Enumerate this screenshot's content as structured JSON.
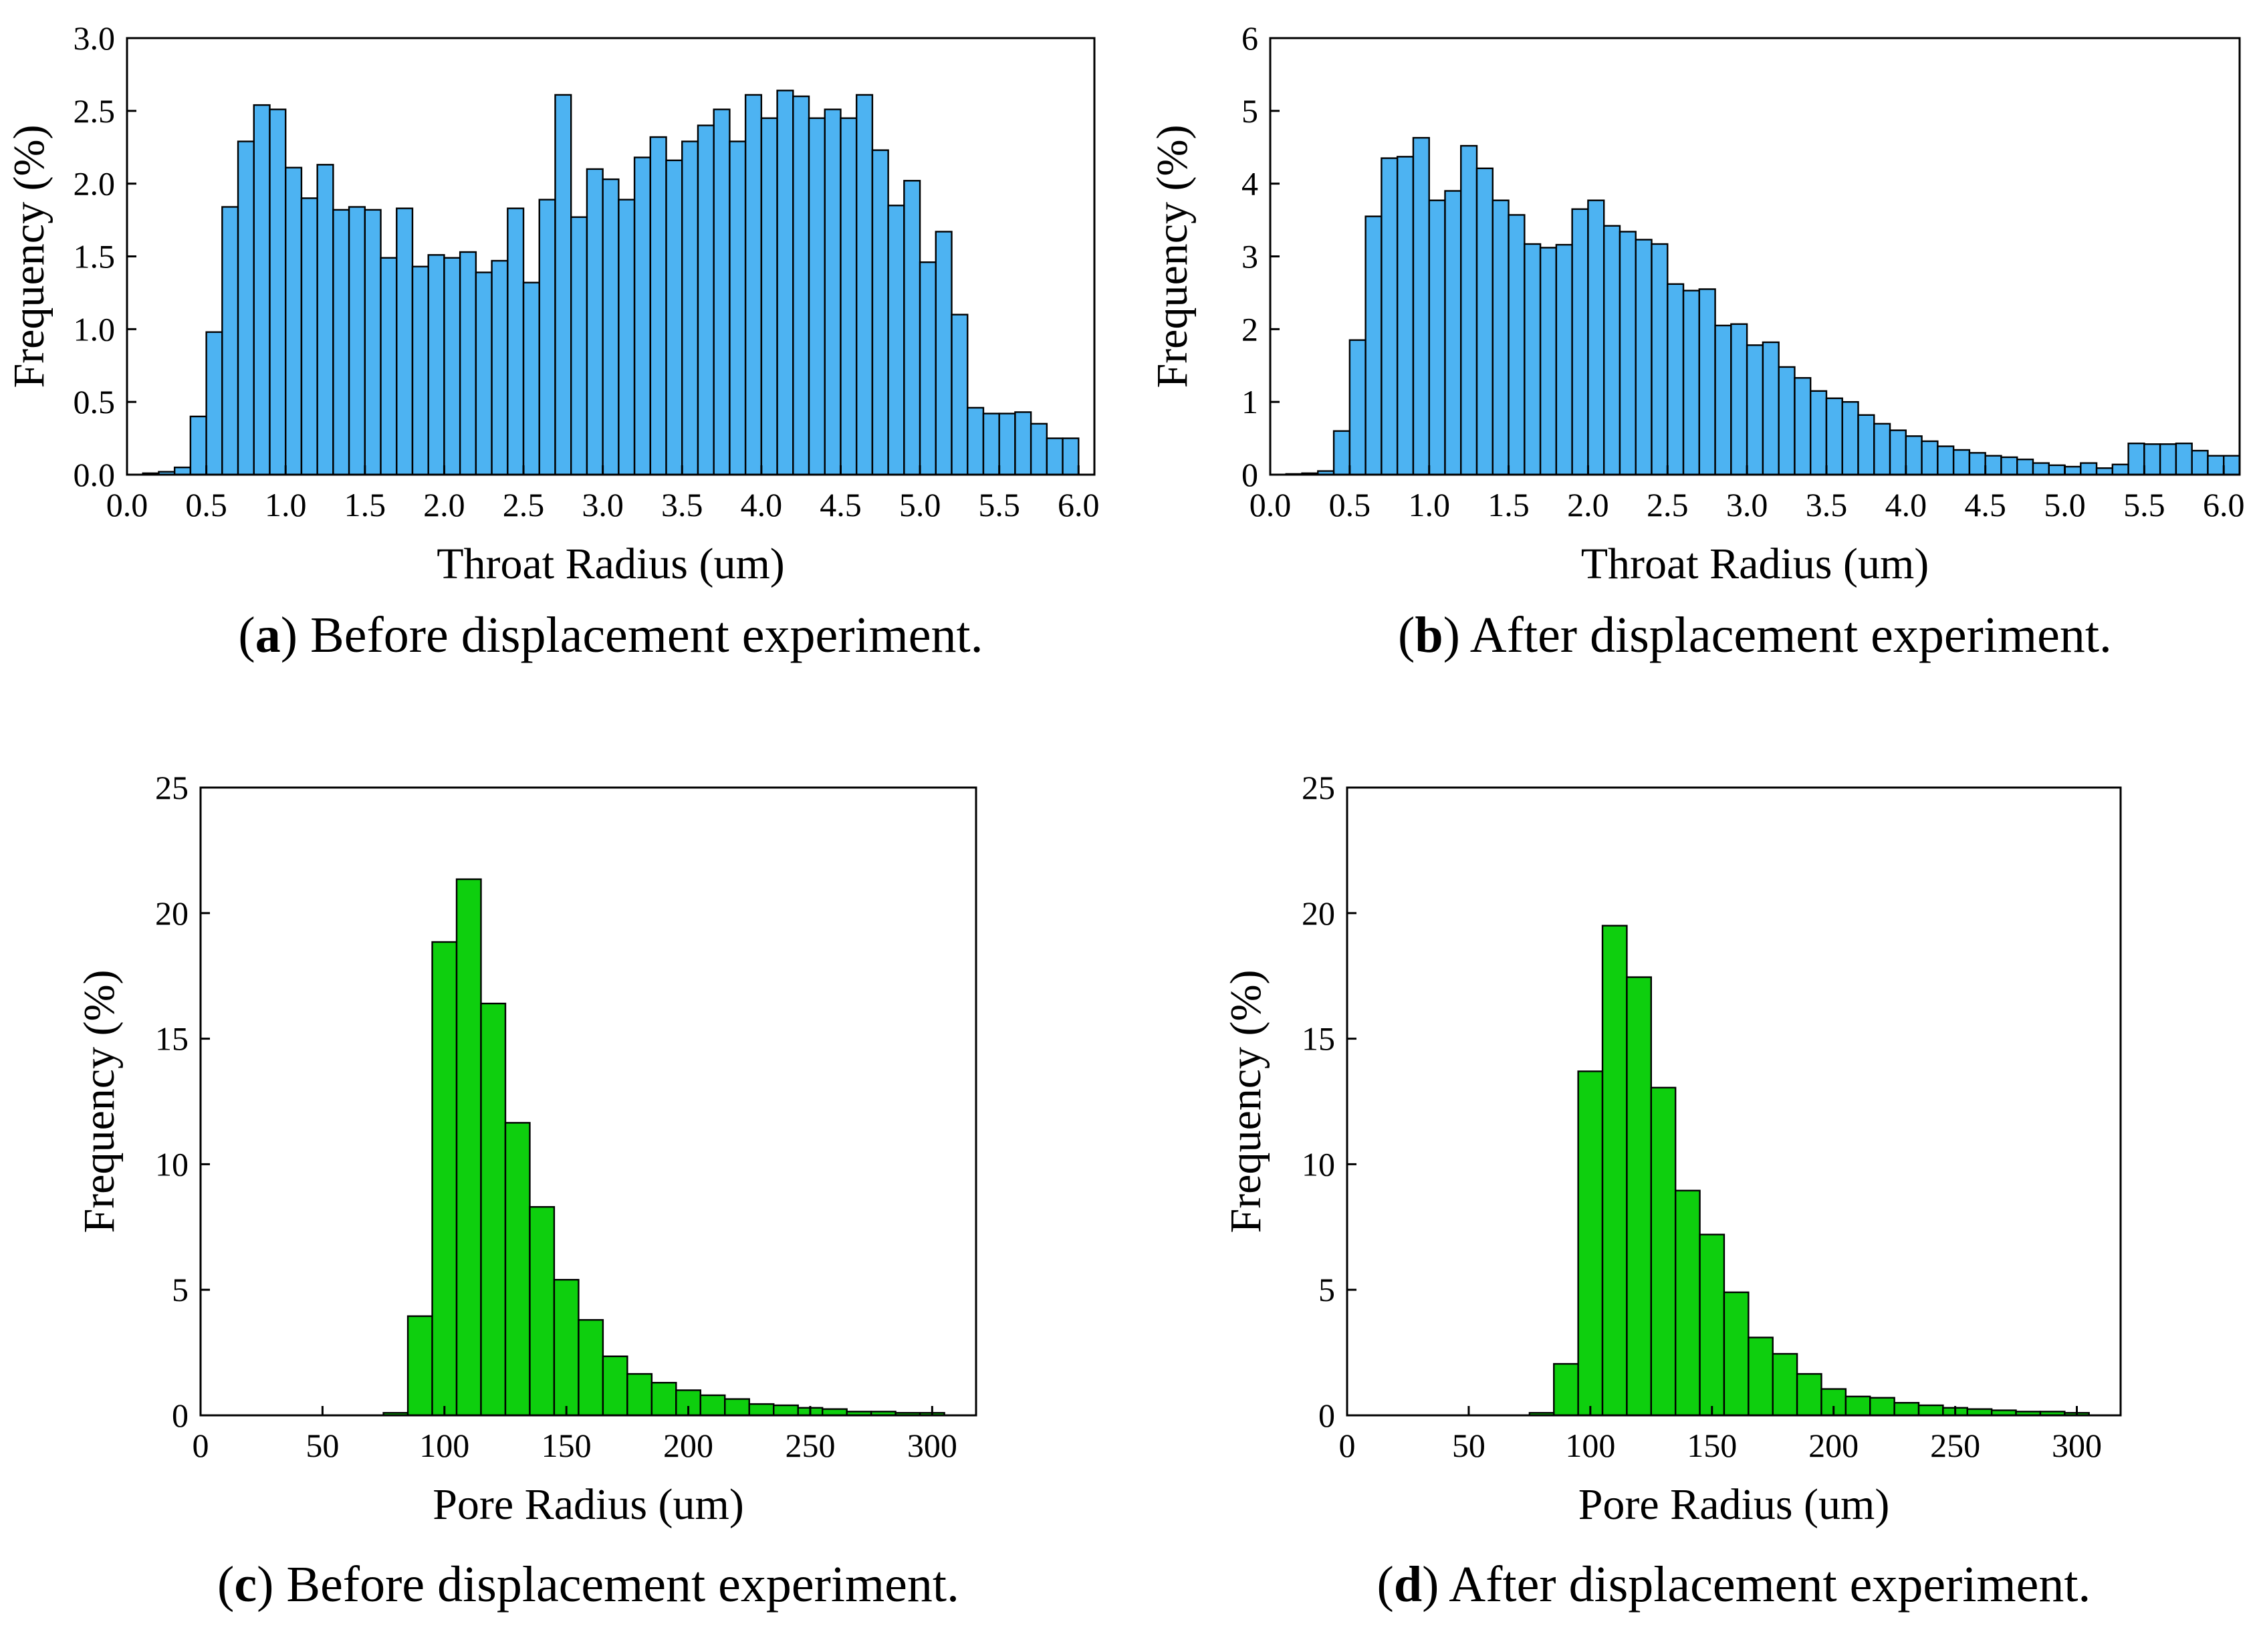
{
  "colors": {
    "throat_bar": "#4db3f2",
    "pore_bar": "#0ecf0e",
    "axis": "#000000"
  },
  "chart_data": [
    {
      "id": "a",
      "type": "bar",
      "caption_letter": "a",
      "caption_text": "Before displacement experiment.",
      "xlabel": "Throat Radius (um)",
      "ylabel": "Frequency (%)",
      "xlim": [
        0,
        6.1
      ],
      "ylim": [
        0,
        3.0
      ],
      "xticks": [
        0.0,
        0.5,
        1.0,
        1.5,
        2.0,
        2.5,
        3.0,
        3.5,
        4.0,
        4.5,
        5.0,
        5.5,
        6.0
      ],
      "xtick_labels": [
        "0.0",
        "0.5",
        "1.0",
        "1.5",
        "2.0",
        "2.5",
        "3.0",
        "3.5",
        "4.0",
        "4.5",
        "5.0",
        "5.5",
        "6.0"
      ],
      "yticks": [
        0.0,
        0.5,
        1.0,
        1.5,
        2.0,
        2.5,
        3.0
      ],
      "ytick_labels": [
        "0.0",
        "0.5",
        "1.0",
        "1.5",
        "2.0",
        "2.5",
        "3.0"
      ],
      "bin_start": 0.1,
      "bin_width": 0.1,
      "values": [
        0.01,
        0.02,
        0.05,
        0.4,
        0.98,
        1.84,
        2.29,
        2.54,
        2.51,
        2.11,
        1.9,
        2.13,
        1.82,
        1.84,
        1.82,
        1.49,
        1.83,
        1.43,
        1.51,
        1.49,
        1.53,
        1.39,
        1.47,
        1.83,
        1.32,
        1.89,
        2.61,
        1.77,
        2.1,
        2.03,
        1.89,
        2.18,
        2.32,
        2.16,
        2.29,
        2.4,
        2.51,
        2.29,
        2.61,
        2.45,
        2.64,
        2.6,
        2.45,
        2.51,
        2.45,
        2.61,
        2.23,
        1.85,
        2.02,
        1.46,
        1.67,
        1.1,
        0.46,
        0.42,
        0.42,
        0.43,
        0.35,
        0.25,
        0.25
      ]
    },
    {
      "id": "b",
      "type": "bar",
      "caption_letter": "b",
      "caption_text": "After displacement experiment.",
      "xlabel": "Throat Radius (um)",
      "ylabel": "Frequency (%)",
      "xlim": [
        0,
        6.1
      ],
      "ylim": [
        0,
        6
      ],
      "xticks": [
        0.0,
        0.5,
        1.0,
        1.5,
        2.0,
        2.5,
        3.0,
        3.5,
        4.0,
        4.5,
        5.0,
        5.5,
        6.0
      ],
      "xtick_labels": [
        "0.0",
        "0.5",
        "1.0",
        "1.5",
        "2.0",
        "2.5",
        "3.0",
        "3.5",
        "4.0",
        "4.5",
        "5.0",
        "5.5",
        "6.0"
      ],
      "yticks": [
        0,
        1,
        2,
        3,
        4,
        5,
        6
      ],
      "ytick_labels": [
        "0",
        "1",
        "2",
        "3",
        "4",
        "5",
        "6"
      ],
      "bin_start": 0.1,
      "bin_width": 0.1,
      "values": [
        0.01,
        0.02,
        0.05,
        0.6,
        1.85,
        3.55,
        4.35,
        4.37,
        4.63,
        3.77,
        3.9,
        4.52,
        4.21,
        3.77,
        3.57,
        3.17,
        3.12,
        3.16,
        3.65,
        3.77,
        3.42,
        3.34,
        3.23,
        3.17,
        2.62,
        2.53,
        2.55,
        2.05,
        2.07,
        1.78,
        1.82,
        1.48,
        1.33,
        1.15,
        1.05,
        1.0,
        0.82,
        0.7,
        0.61,
        0.53,
        0.46,
        0.39,
        0.34,
        0.3,
        0.26,
        0.24,
        0.21,
        0.16,
        0.13,
        0.11,
        0.16,
        0.09,
        0.14,
        0.43,
        0.42,
        0.42,
        0.43,
        0.33,
        0.26,
        0.26
      ]
    },
    {
      "id": "c",
      "type": "bar",
      "caption_letter": "c",
      "caption_text": "Before displacement experiment.",
      "xlabel": "Pore Radius (um)",
      "ylabel": "Frequency (%)",
      "xlim": [
        0,
        318
      ],
      "ylim": [
        0,
        25
      ],
      "xticks": [
        0,
        50,
        100,
        150,
        200,
        250,
        300
      ],
      "xtick_labels": [
        "0",
        "50",
        "100",
        "150",
        "200",
        "250",
        "300"
      ],
      "yticks": [
        0,
        5,
        10,
        15,
        20,
        25
      ],
      "ytick_labels": [
        "0",
        "5",
        "10",
        "15",
        "20",
        "25"
      ],
      "bin_start": 75,
      "bin_width": 10,
      "values": [
        0.1,
        3.95,
        18.85,
        21.35,
        16.4,
        11.65,
        8.3,
        5.4,
        3.8,
        2.35,
        1.65,
        1.3,
        1.0,
        0.8,
        0.65,
        0.45,
        0.4,
        0.3,
        0.25,
        0.15,
        0.15,
        0.1,
        0.1
      ]
    },
    {
      "id": "d",
      "type": "bar",
      "caption_letter": "d",
      "caption_text": "After displacement experiment.",
      "xlabel": "Pore Radius (um)",
      "ylabel": "Frequency (%)",
      "xlim": [
        0,
        318
      ],
      "ylim": [
        0,
        25
      ],
      "xticks": [
        0,
        50,
        100,
        150,
        200,
        250,
        300
      ],
      "xtick_labels": [
        "0",
        "50",
        "100",
        "150",
        "200",
        "250",
        "300"
      ],
      "yticks": [
        0,
        5,
        10,
        15,
        20,
        25
      ],
      "ytick_labels": [
        "0",
        "5",
        "10",
        "15",
        "20",
        "25"
      ],
      "bin_start": 75,
      "bin_width": 10,
      "values": [
        0.1,
        2.05,
        13.7,
        19.5,
        17.45,
        13.05,
        8.95,
        7.2,
        4.9,
        3.1,
        2.45,
        1.65,
        1.05,
        0.75,
        0.7,
        0.5,
        0.4,
        0.3,
        0.25,
        0.2,
        0.15,
        0.15,
        0.1
      ]
    }
  ]
}
